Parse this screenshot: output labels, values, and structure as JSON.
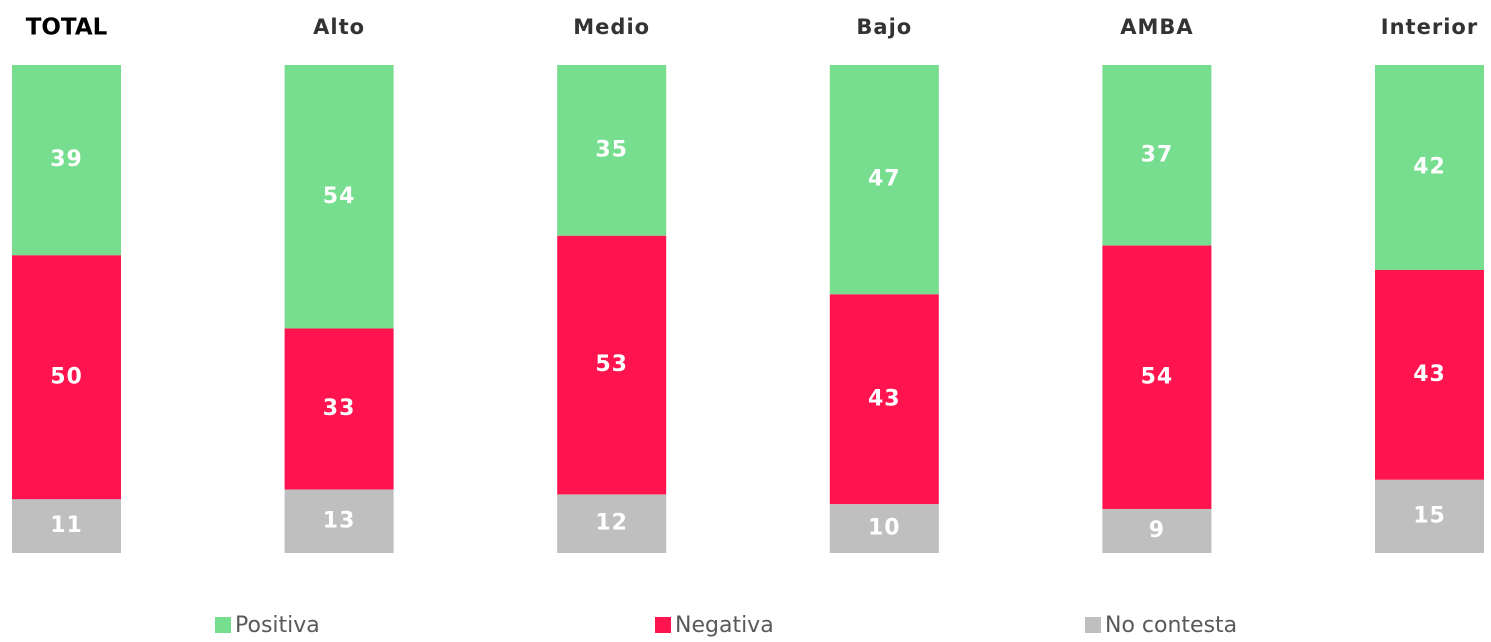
{
  "chart_data": {
    "type": "stacked_bar",
    "categories": [
      "TOTAL",
      "Alto",
      "Medio",
      "Bajo",
      "AMBA",
      "Interior"
    ],
    "series": [
      {
        "name": "Positiva",
        "color": "#77dd8f",
        "values": [
          39,
          54,
          35,
          47,
          37,
          42
        ]
      },
      {
        "name": "Negativa",
        "color": "#ff1450",
        "values": [
          50,
          33,
          53,
          43,
          54,
          43
        ]
      },
      {
        "name": "No contesta",
        "color": "#bfbfbf",
        "values": [
          11,
          13,
          12,
          10,
          9,
          15
        ]
      }
    ]
  }
}
